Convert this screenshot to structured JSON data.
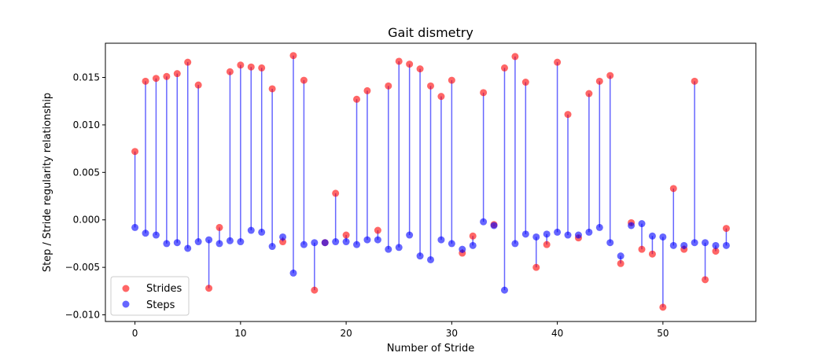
{
  "chart_data": {
    "type": "scatter",
    "title": "Gait dismetry",
    "xlabel": "Number of Stride",
    "ylabel": "Step / Stride regularity relationship",
    "xlim": [
      -2.8,
      58.8
    ],
    "ylim": [
      -0.0107,
      0.0186
    ],
    "xticks": [
      0,
      10,
      20,
      30,
      40,
      50
    ],
    "xtick_labels": [
      "0",
      "10",
      "20",
      "30",
      "40",
      "50"
    ],
    "yticks": [
      -0.01,
      -0.005,
      0.0,
      0.005,
      0.01,
      0.015
    ],
    "ytick_labels": [
      "−0.010",
      "−0.005",
      "0.000",
      "0.005",
      "0.010",
      "0.015"
    ],
    "legend_position": "lower-left",
    "grid": false,
    "x": [
      0,
      1,
      2,
      3,
      4,
      5,
      6,
      7,
      8,
      9,
      10,
      11,
      12,
      13,
      14,
      15,
      16,
      17,
      18,
      19,
      20,
      21,
      22,
      23,
      24,
      25,
      26,
      27,
      28,
      29,
      30,
      31,
      32,
      33,
      34,
      35,
      36,
      37,
      38,
      39,
      40,
      41,
      42,
      43,
      44,
      45,
      46,
      47,
      48,
      49,
      50,
      51,
      52,
      53,
      54,
      55,
      56
    ],
    "series": [
      {
        "name": "Strides",
        "color": "#ff0000",
        "values": [
          0.0072,
          0.0146,
          0.0149,
          0.0151,
          0.0154,
          0.0166,
          0.0142,
          -0.0072,
          -0.0008,
          0.0156,
          0.0163,
          0.0161,
          0.016,
          0.0138,
          -0.0023,
          0.0173,
          0.0147,
          -0.0074,
          -0.0024,
          0.0028,
          -0.0016,
          0.0127,
          0.0136,
          -0.0011,
          0.0141,
          0.0167,
          0.0164,
          0.0159,
          0.0141,
          0.013,
          0.0147,
          -0.0035,
          -0.0017,
          0.0134,
          -0.0005,
          0.016,
          0.0172,
          0.0145,
          -0.005,
          -0.0026,
          0.0166,
          0.0111,
          -0.0019,
          0.0133,
          0.0146,
          0.0152,
          -0.0046,
          -0.0003,
          -0.0031,
          -0.0036,
          -0.0092,
          0.0033,
          -0.0031,
          0.0146,
          -0.0063,
          -0.0033,
          -0.0009
        ]
      },
      {
        "name": "Steps",
        "color": "#0000ff",
        "values": [
          -0.0008,
          -0.0014,
          -0.0016,
          -0.0025,
          -0.0024,
          -0.003,
          -0.0023,
          -0.0021,
          -0.0025,
          -0.0022,
          -0.0023,
          -0.0011,
          -0.0013,
          -0.0028,
          -0.0018,
          -0.0056,
          -0.0026,
          -0.0024,
          -0.0024,
          -0.0023,
          -0.0023,
          -0.0026,
          -0.0021,
          -0.0021,
          -0.0031,
          -0.0029,
          -0.0016,
          -0.0038,
          -0.0042,
          -0.0021,
          -0.0025,
          -0.0031,
          -0.0027,
          -0.0002,
          -0.0006,
          -0.0074,
          -0.0025,
          -0.0015,
          -0.0018,
          -0.0015,
          -0.0013,
          -0.0016,
          -0.0016,
          -0.0013,
          -0.0008,
          -0.0024,
          -0.0038,
          -0.0006,
          -0.0004,
          -0.0017,
          -0.0018,
          -0.0027,
          -0.0027,
          -0.0024,
          -0.0024,
          -0.0027,
          -0.0027
        ]
      }
    ],
    "stem_color": "#0000ff"
  }
}
